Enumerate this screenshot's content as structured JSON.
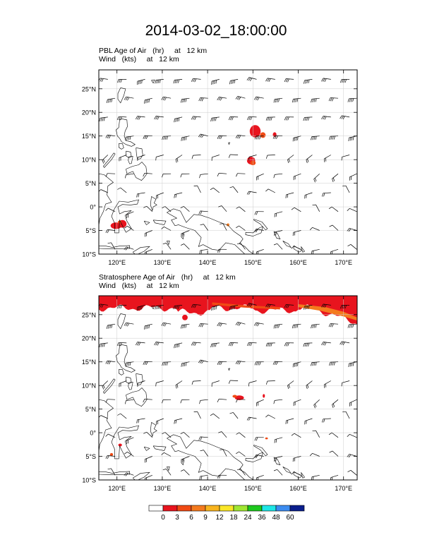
{
  "title": "2014-03-02_18:00:00",
  "panels": [
    {
      "id": "pbl",
      "label_line1": "PBL Age of Air   (hr)     at   12 km",
      "label_line2": "Wind   (kts)     at   12 km",
      "lat_ticks": [
        "25°N",
        "20°N",
        "15°N",
        "10°N",
        "5°N",
        "0°",
        "5°S",
        "10°S"
      ],
      "lat_values": [
        25,
        20,
        15,
        10,
        5,
        0,
        -5,
        -10
      ],
      "lon_ticks": [
        "120°E",
        "130°E",
        "140°E",
        "150°E",
        "160°E",
        "170°E"
      ],
      "lon_values": [
        120,
        130,
        140,
        150,
        160,
        170
      ]
    },
    {
      "id": "strat",
      "label_line1": "Stratosphere Age of Air   (hr)     at   12 km",
      "label_line2": "Wind   (kts)     at   12 km",
      "lat_ticks": [
        "25°N",
        "20°N",
        "15°N",
        "10°N",
        "5°N",
        "0°",
        "5°S",
        "10°S"
      ],
      "lat_values": [
        25,
        20,
        15,
        10,
        5,
        0,
        -5,
        -10
      ],
      "lon_ticks": [
        "120°E",
        "130°E",
        "140°E",
        "150°E",
        "160°E",
        "170°E"
      ],
      "lon_values": [
        120,
        130,
        140,
        150,
        160,
        170
      ]
    }
  ],
  "map_extent": {
    "lon_min": 116,
    "lon_max": 173,
    "lat_min": -10,
    "lat_max": 29
  },
  "colorbar": {
    "labels": [
      "0",
      "3",
      "6",
      "9",
      "12",
      "18",
      "24",
      "36",
      "48",
      "60"
    ],
    "colors": [
      "#ffffff",
      "#e8141e",
      "#f04a14",
      "#f47a1e",
      "#f8b41e",
      "#fae628",
      "#a0e632",
      "#1ec81e",
      "#1ee6e6",
      "#3c8cf0",
      "#0a1e8c"
    ]
  },
  "colors": {
    "red": "#e8141e",
    "orange_red": "#f04a14",
    "orange": "#f47a1e",
    "grid": "#cccccc",
    "coast": "#000000",
    "barb": "#000000"
  }
}
